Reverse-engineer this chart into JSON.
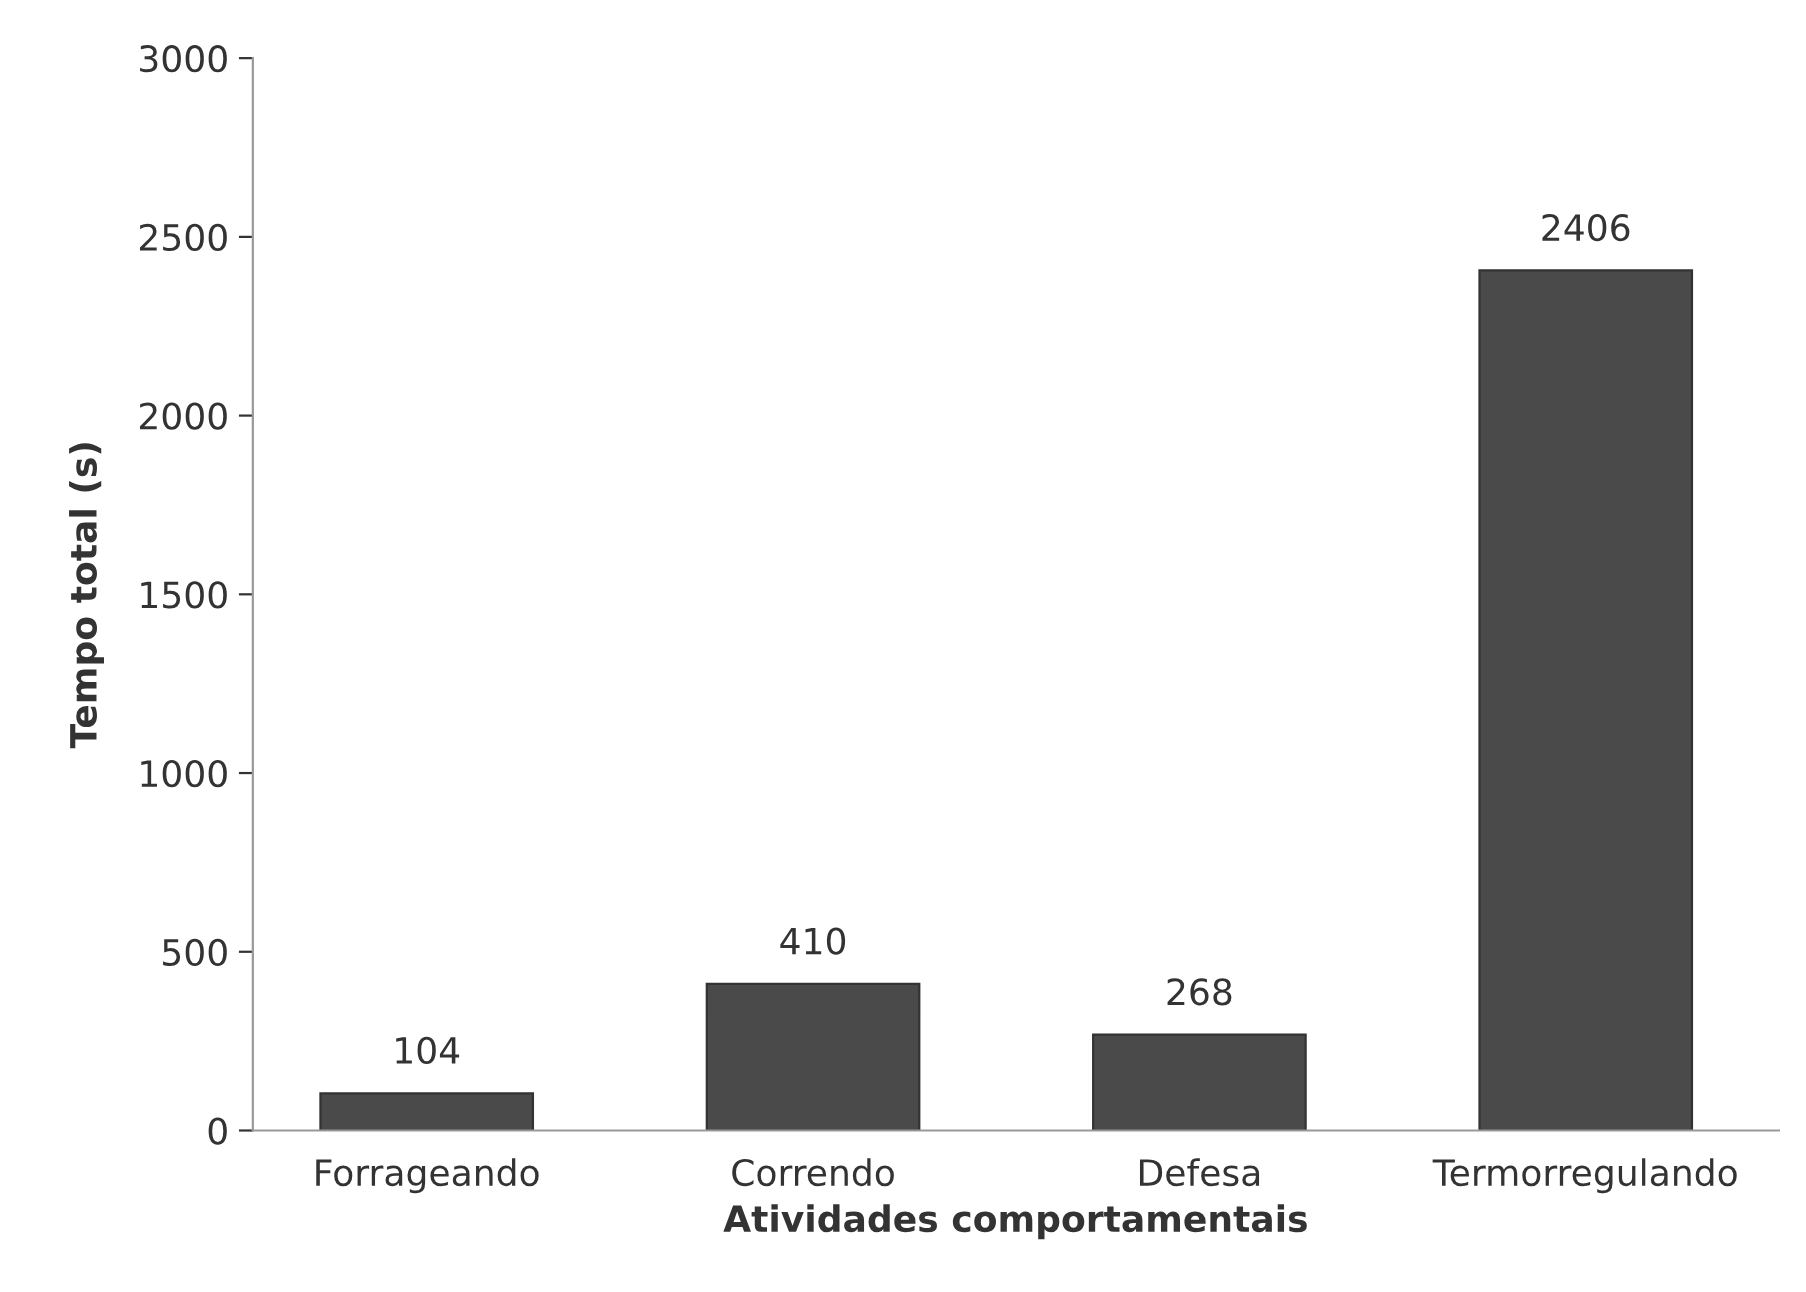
{
  "chart_data": {
    "type": "bar",
    "xlabel": "Atividades comportamentais",
    "ylabel": "Tempo total (s)",
    "categories": [
      "Forrageando",
      "Correndo",
      "Defesa",
      "Termorregulando"
    ],
    "values": [
      104,
      410,
      268,
      2406
    ],
    "color": "#4a4a4a",
    "ylim": [
      0,
      3000
    ],
    "yticks": [
      0,
      500,
      1000,
      1500,
      2000,
      2500,
      3000
    ],
    "grid": false,
    "data_labels": true
  }
}
